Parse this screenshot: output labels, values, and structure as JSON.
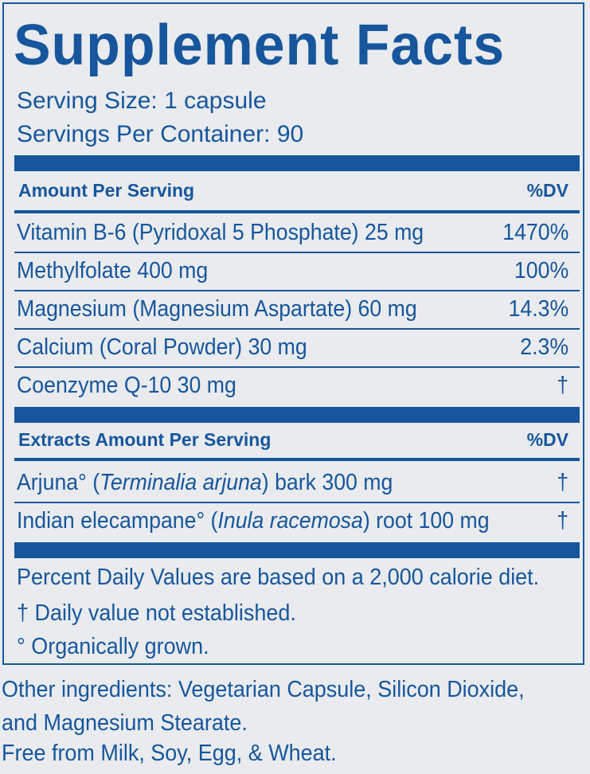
{
  "title": "Supplement Facts",
  "serving_size": "Serving Size: 1 capsule",
  "servings_per_container": "Servings Per Container: 90",
  "section1": {
    "header": "Amount Per Serving",
    "dv_header": "%DV",
    "rows": [
      {
        "name": "Vitamin B-6 (Pyridoxal 5 Phosphate) 25 mg",
        "dv": "1470%"
      },
      {
        "name": "Methylfolate 400 mg",
        "dv": "100%"
      },
      {
        "name": "Magnesium (Magnesium Aspartate) 60 mg",
        "dv": "14.3%"
      },
      {
        "name": "Calcium (Coral Powder) 30 mg",
        "dv": "2.3%"
      },
      {
        "name": "Coenzyme Q-10 30 mg",
        "dv": "†"
      }
    ]
  },
  "section2": {
    "header": "Extracts Amount Per Serving",
    "dv_header": "%DV",
    "rows": [
      {
        "pre": "Arjuna° (",
        "latin": "Terminalia arjuna",
        "post": ") bark 300 mg",
        "dv": "†"
      },
      {
        "pre": "Indian elecampane° (",
        "latin": "Inula racemosa",
        "post": ") root 100 mg",
        "dv": "†"
      }
    ]
  },
  "footnotes": [
    "Percent Daily Values are based on a 2,000 calorie diet.",
    "† Daily value not established.",
    "° Organically grown."
  ],
  "other_ingredients": [
    "Other ingredients: Vegetarian Capsule, Silicon Dioxide,",
    "and Magnesium Stearate.",
    "Free from Milk, Soy, Egg, & Wheat."
  ],
  "colors": {
    "ink": "#17569c",
    "background": "#e9ebee"
  }
}
